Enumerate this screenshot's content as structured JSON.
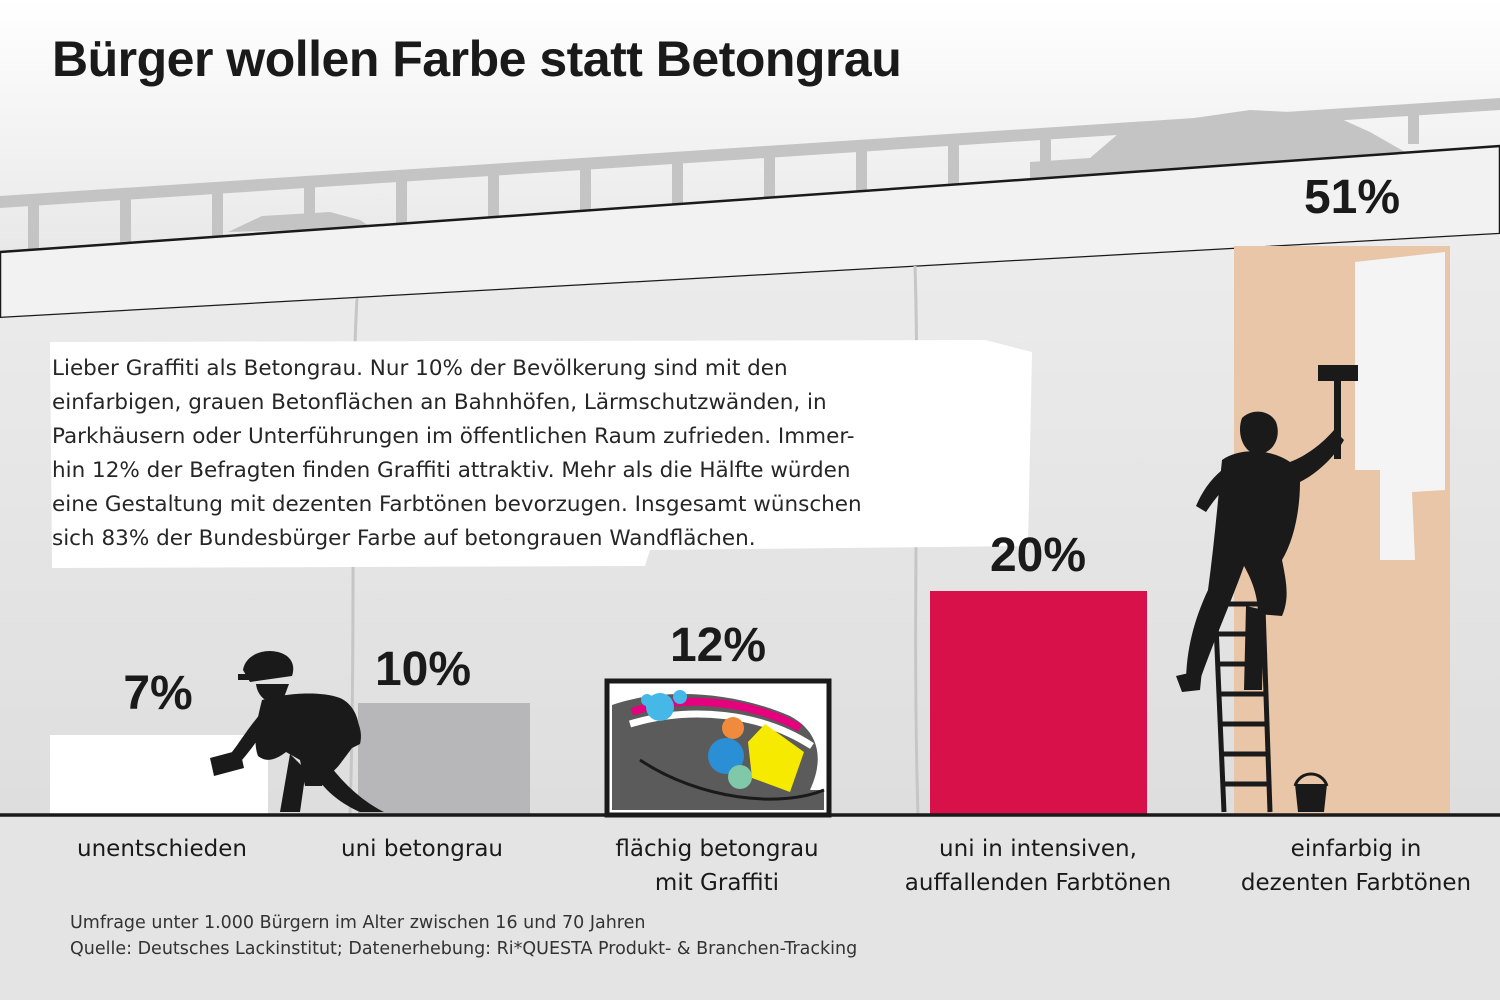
{
  "title": "Bürger wollen Farbe statt Betongrau",
  "description": [
    "Lieber Graffiti als Betongrau. Nur 10% der Bevölkerung sind mit den",
    "einfarbigen, grauen Betonflächen an Bahnhöfen, Lärmschutzwänden, in",
    "Parkhäusern oder Unterführungen im öffentlichen Raum zufrieden. Immer-",
    "hin 12% der Befragten finden Graffiti attraktiv. Mehr als die Hälfte würden",
    "eine Gestaltung mit dezenten Farbtönen bevorzugen. Insgesamt wünschen",
    "sich 83% der Bundesbürger Farbe auf betongrauen Wandflächen."
  ],
  "chart_data": {
    "type": "bar",
    "categories": [
      [
        "unentschieden"
      ],
      [
        "uni betongrau"
      ],
      [
        "flächig betongrau",
        "mit Graffiti"
      ],
      [
        "uni in intensiven,",
        "auffallenden Farbtönen"
      ],
      [
        "einfarbig in",
        "dezenten Farbtönen"
      ]
    ],
    "values": [
      7,
      10,
      12,
      20,
      51
    ],
    "value_labels": [
      "7%",
      "10%",
      "12%",
      "20%",
      "51%"
    ],
    "unit": "%",
    "colors": [
      "#ffffff",
      "#b7b7b9",
      "#ffffff",
      "#d8114b",
      "#e9c6a8"
    ],
    "ylim": [
      0,
      51
    ],
    "grid": false,
    "legend": "none"
  },
  "footer": [
    "Umfrage unter 1.000 Bürgern im Alter zwischen 16 und 70 Jahren",
    "Quelle: Deutsches Lackinstitut; Datenerhebung:  Ri*QUESTA Produkt- & Branchen-Tracking"
  ],
  "icons": [
    "worker-painting-icon",
    "painter-on-ladder-icon",
    "graffiti-canvas-icon",
    "paint-bucket-icon",
    "paint-roller-icon"
  ]
}
